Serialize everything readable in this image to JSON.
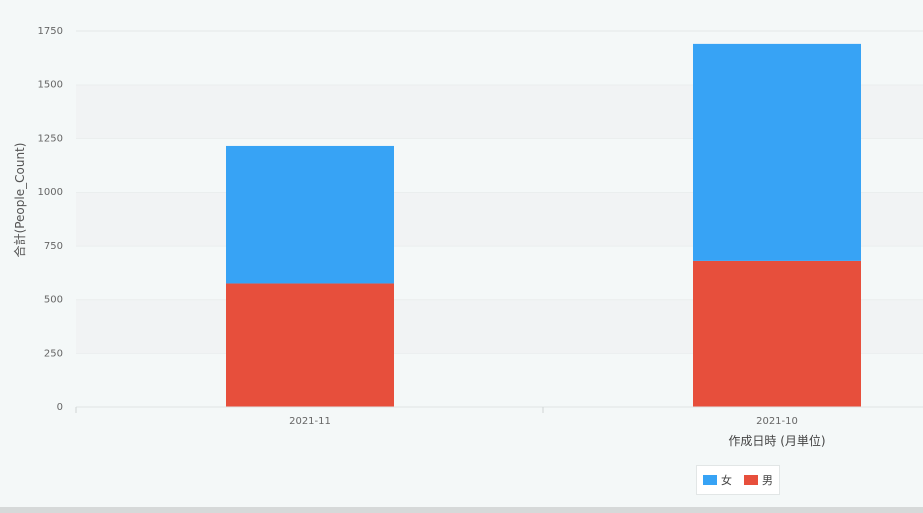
{
  "chart_data": {
    "type": "bar",
    "stacked": true,
    "categories": [
      "2021-11",
      "2021-10"
    ],
    "series": [
      {
        "name": "男",
        "values": [
          575,
          680
        ],
        "color": "#e74f3c"
      },
      {
        "name": "女",
        "values": [
          640,
          1010
        ],
        "color": "#37a3f5"
      }
    ],
    "title": "",
    "xlabel": "作成日時 (月単位)",
    "ylabel": "合計(People_Count)",
    "ylim": [
      0,
      1750
    ],
    "yticks": [
      0,
      250,
      500,
      750,
      1000,
      1250,
      1500,
      1750
    ],
    "grid": true,
    "legend_position": "bottom"
  },
  "legend": {
    "items": [
      {
        "label": "女",
        "color": "#37a3f5"
      },
      {
        "label": "男",
        "color": "#e74f3c"
      }
    ]
  }
}
